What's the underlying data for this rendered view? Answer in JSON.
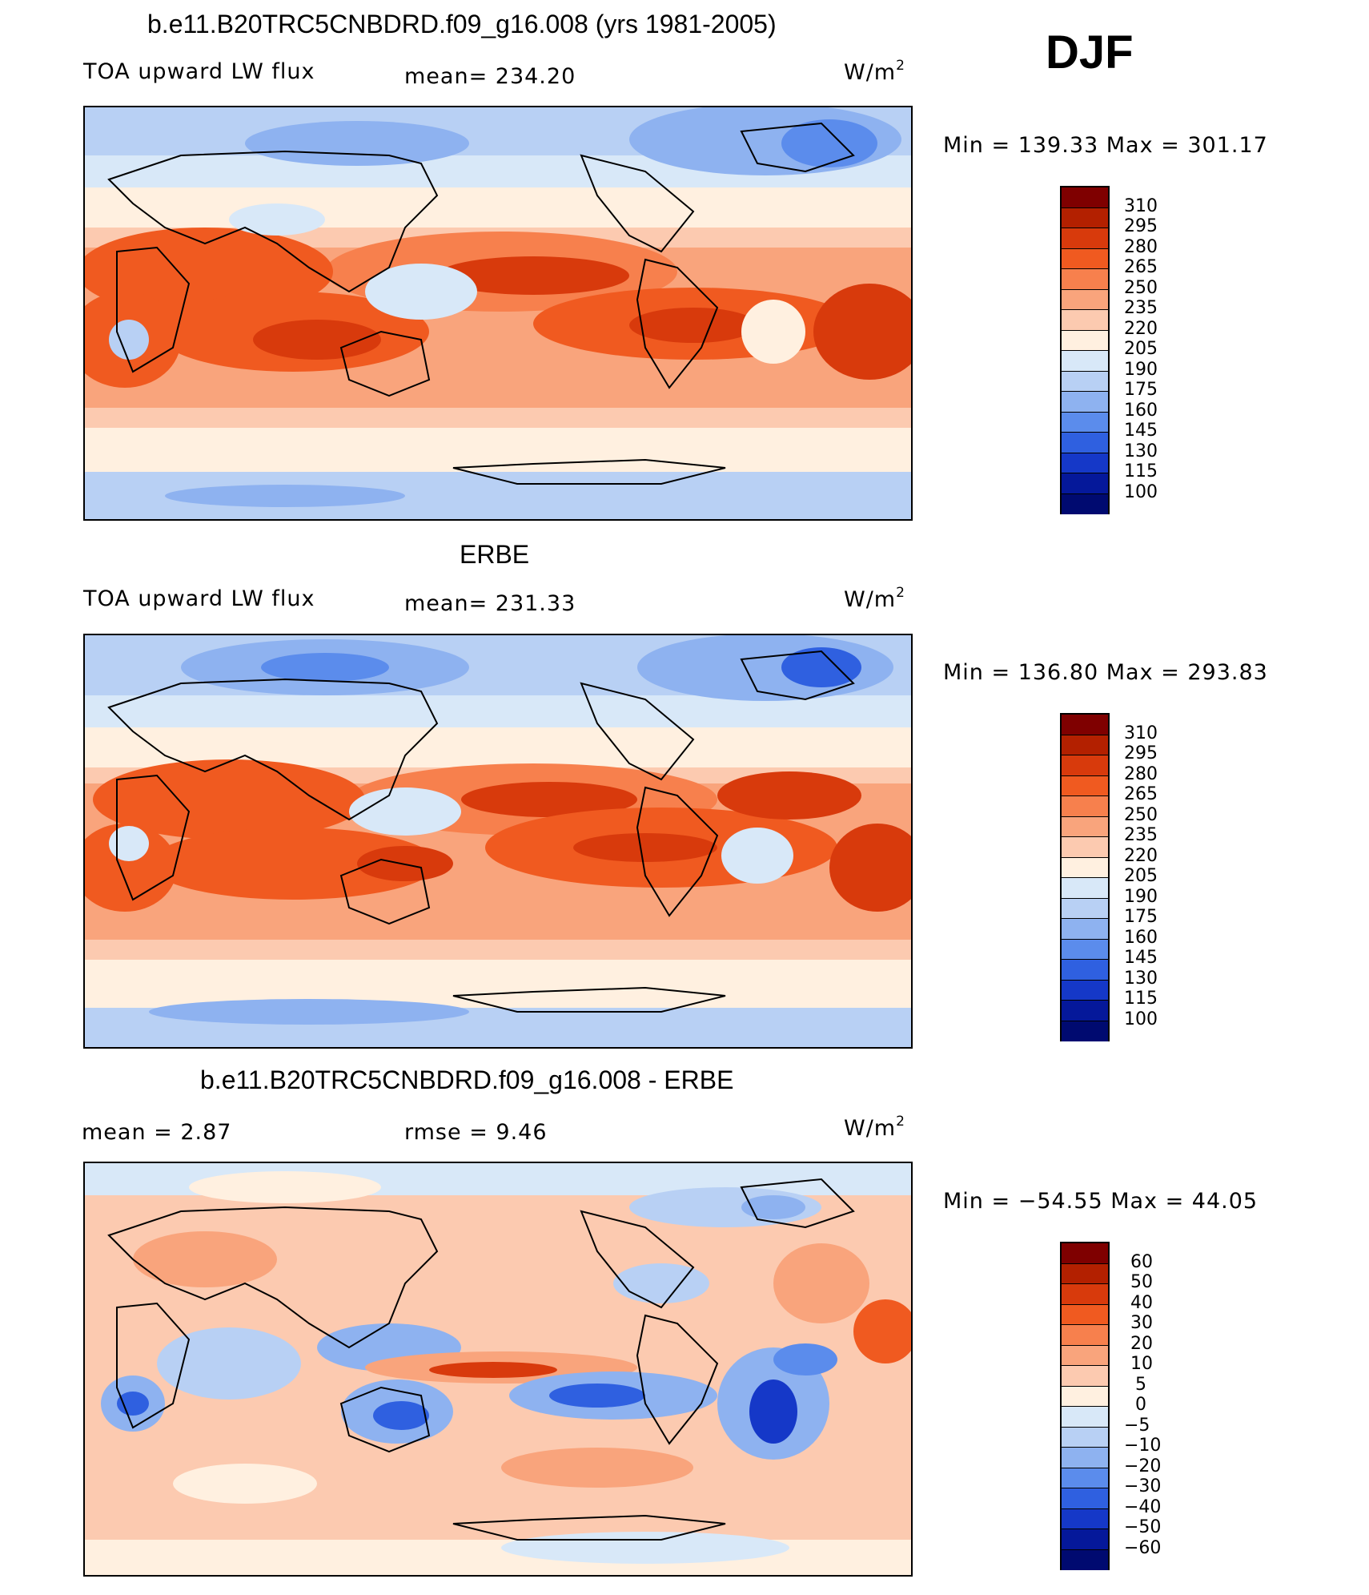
{
  "header": {
    "panel1_title": "b.e11.B20TRC5CNBDRD.f09_g16.008 (yrs 1981-2005)",
    "season": "DJF"
  },
  "panels": [
    {
      "title": "",
      "variable": "TOA upward LW flux",
      "stat": "mean=  234.20",
      "units_base": "W/m",
      "units_exp": "2",
      "range": "Min  =  139.33  Max  =  301.17",
      "levels": [
        "310",
        "295",
        "280",
        "265",
        "250",
        "235",
        "220",
        "205",
        "190",
        "175",
        "160",
        "145",
        "130",
        "115",
        "100"
      ],
      "level_values": [
        310,
        295,
        280,
        265,
        250,
        235,
        220,
        205,
        190,
        175,
        160,
        145,
        130,
        115,
        100
      ]
    },
    {
      "title": "ERBE",
      "variable": "TOA upward LW flux",
      "stat": "mean=  231.33",
      "units_base": "W/m",
      "units_exp": "2",
      "range": "Min  =  136.80  Max  =  293.83",
      "levels": [
        "310",
        "295",
        "280",
        "265",
        "250",
        "235",
        "220",
        "205",
        "190",
        "175",
        "160",
        "145",
        "130",
        "115",
        "100"
      ],
      "level_values": [
        310,
        295,
        280,
        265,
        250,
        235,
        220,
        205,
        190,
        175,
        160,
        145,
        130,
        115,
        100
      ]
    },
    {
      "title": "b.e11.B20TRC5CNBDRD.f09_g16.008 - ERBE",
      "stat_left": "mean  =      2.87",
      "stat_mid": "rmse  =      9.46",
      "units_base": "W/m",
      "units_exp": "2",
      "range": "Min  =  −54.55  Max  =    44.05",
      "levels": [
        "60",
        "50",
        "40",
        "30",
        "20",
        "10",
        "5",
        "0",
        "−5",
        "−10",
        "−20",
        "−30",
        "−40",
        "−50",
        "−60"
      ],
      "level_values": [
        60,
        50,
        40,
        30,
        20,
        10,
        5,
        0,
        -5,
        -10,
        -20,
        -30,
        -40,
        -50,
        -60
      ]
    }
  ],
  "colors": {
    "abs_colorbar": [
      "#7f0000",
      "#b32000",
      "#d83a0c",
      "#f05a20",
      "#f7804d",
      "#f9a47c",
      "#fccab0",
      "#fff0e0",
      "#d8e8f8",
      "#b8d0f4",
      "#8eb2f0",
      "#5b8cec",
      "#2f60e0",
      "#1538c8",
      "#05189a",
      "#000a70"
    ],
    "diff_colorbar": [
      "#7f0000",
      "#b32000",
      "#d83a0c",
      "#f05a20",
      "#f7804d",
      "#f9a47c",
      "#fccab0",
      "#fff0e0",
      "#d8e8f8",
      "#b8d0f4",
      "#8eb2f0",
      "#5b8cec",
      "#2f60e0",
      "#1538c8",
      "#05189a",
      "#000a70"
    ]
  }
}
